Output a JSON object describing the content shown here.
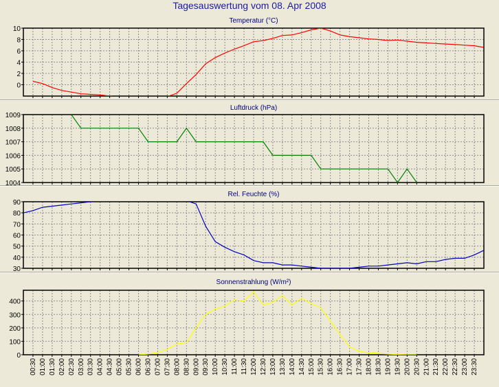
{
  "window": {
    "title": "Tagesauswertung vom 08. Apr 2008"
  },
  "time_labels": [
    "00:30",
    "01:00",
    "01:30",
    "02:00",
    "02:30",
    "03:00",
    "03:30",
    "04:00",
    "04:30",
    "05:00",
    "05:30",
    "06:00",
    "06:30",
    "07:00",
    "07:30",
    "08:00",
    "08:30",
    "09:00",
    "09:30",
    "10:00",
    "10:30",
    "11:00",
    "11:30",
    "12:00",
    "12:30",
    "13:00",
    "13:30",
    "14:00",
    "14:30",
    "15:00",
    "15:30",
    "16:00",
    "16:30",
    "17:00",
    "17:30",
    "18:00",
    "18:30",
    "19:00",
    "19:30",
    "20:00",
    "20:30",
    "21:00",
    "21:30",
    "22:00",
    "22:30",
    "23:00",
    "23:30"
  ],
  "chart_data": [
    {
      "type": "line",
      "title": "Temperatur (°C)",
      "color": "#ff0000",
      "ylim": [
        -2,
        10
      ],
      "yticks": [
        0,
        2,
        4,
        6,
        8,
        10
      ],
      "grid": true,
      "x": [
        "00:30",
        "01:00",
        "01:30",
        "02:00",
        "02:30",
        "03:00",
        "03:30",
        "04:00",
        "04:30",
        "05:00",
        "07:30",
        "08:00",
        "08:30",
        "09:00",
        "09:30",
        "10:00",
        "10:30",
        "11:00",
        "11:30",
        "12:00",
        "12:30",
        "13:00",
        "13:30",
        "14:00",
        "14:30",
        "15:00",
        "15:30",
        "16:00",
        "16:30",
        "17:00",
        "17:30",
        "18:00",
        "18:30",
        "19:00",
        "19:30",
        "20:00",
        "20:30",
        "21:00",
        "21:30",
        "22:00",
        "22:30",
        "23:00",
        "23:30",
        "23:59"
      ],
      "values": [
        0.6,
        0.2,
        -0.5,
        -1.0,
        -1.3,
        -1.6,
        -1.7,
        -1.8,
        -2.0,
        -2.2,
        -2.1,
        -1.5,
        0.2,
        1.8,
        3.7,
        4.8,
        5.6,
        6.3,
        6.9,
        7.6,
        7.8,
        8.2,
        8.7,
        8.8,
        9.2,
        9.7,
        10.0,
        9.5,
        8.8,
        8.5,
        8.3,
        8.1,
        8.0,
        7.8,
        7.9,
        7.7,
        7.5,
        7.4,
        7.3,
        7.2,
        7.1,
        7.0,
        6.9,
        6.6
      ]
    },
    {
      "type": "line",
      "title": "Luftdruck (hPa)",
      "color": "#008000",
      "ylim": [
        1004,
        1009
      ],
      "yticks": [
        1004,
        1005,
        1006,
        1007,
        1008,
        1009
      ],
      "grid": true,
      "x": [
        "02:30",
        "03:00",
        "03:30",
        "04:00",
        "04:30",
        "05:00",
        "05:30",
        "06:00",
        "06:30",
        "07:00",
        "07:30",
        "08:00",
        "08:30",
        "09:00",
        "09:30",
        "10:00",
        "10:30",
        "11:00",
        "11:30",
        "12:00",
        "12:30",
        "13:00",
        "13:30",
        "14:00",
        "14:30",
        "15:00",
        "15:30",
        "16:00",
        "16:30",
        "17:00",
        "17:30",
        "18:00",
        "18:30",
        "19:00",
        "19:30",
        "20:00",
        "20:30"
      ],
      "values": [
        1009,
        1008,
        1008,
        1008,
        1008,
        1008,
        1008,
        1008,
        1007,
        1007,
        1007,
        1007,
        1008,
        1007,
        1007,
        1007,
        1007,
        1007,
        1007,
        1007,
        1007,
        1006,
        1006,
        1006,
        1006,
        1006,
        1005,
        1005,
        1005,
        1005,
        1005,
        1005,
        1005,
        1005,
        1004,
        1005,
        1004
      ]
    },
    {
      "type": "line",
      "title": "Rel. Feuchte (%)",
      "color": "#0000c0",
      "ylim": [
        30,
        90
      ],
      "yticks": [
        30,
        40,
        50,
        60,
        70,
        80,
        90
      ],
      "grid": true,
      "x": [
        "00:00",
        "00:30",
        "01:00",
        "01:30",
        "02:00",
        "02:30",
        "03:00",
        "03:30",
        "04:00",
        "04:30",
        "05:00",
        "05:30",
        "06:00",
        "08:30",
        "09:00",
        "09:30",
        "10:00",
        "10:30",
        "11:00",
        "11:30",
        "12:00",
        "12:30",
        "13:00",
        "13:30",
        "14:00",
        "14:30",
        "15:00",
        "15:30",
        "16:00",
        "16:30",
        "17:00",
        "17:30",
        "18:00",
        "18:30",
        "19:00",
        "19:30",
        "20:00",
        "20:30",
        "21:00",
        "21:30",
        "22:00",
        "22:30",
        "23:00",
        "23:30",
        "23:59"
      ],
      "values": [
        80,
        82,
        85,
        86,
        87,
        88,
        89,
        90,
        91,
        91,
        91,
        91,
        92,
        91,
        88,
        68,
        54,
        49,
        45,
        42,
        37,
        35,
        35,
        33,
        33,
        32,
        31,
        30,
        30,
        30,
        30,
        31,
        32,
        32,
        33,
        34,
        35,
        34,
        36,
        36,
        38,
        39,
        39,
        42,
        46
      ]
    },
    {
      "type": "line",
      "title": "Sonnenstrahlung (W/m²)",
      "color": "#ffff00",
      "ylim": [
        0,
        480
      ],
      "yticks": [
        0,
        100,
        200,
        300,
        400
      ],
      "grid": true,
      "x": [
        "06:00",
        "06:30",
        "07:00",
        "07:30",
        "08:00",
        "08:30",
        "09:00",
        "09:30",
        "10:00",
        "10:30",
        "11:00",
        "11:30",
        "12:00",
        "12:30",
        "13:00",
        "13:30",
        "14:00",
        "14:30",
        "15:00",
        "15:30",
        "16:00",
        "16:30",
        "17:00",
        "17:30",
        "18:00",
        "18:30",
        "19:00",
        "19:30",
        "20:00",
        "20:30"
      ],
      "values": [
        0,
        5,
        15,
        40,
        80,
        90,
        200,
        300,
        340,
        360,
        410,
        400,
        470,
        370,
        390,
        440,
        370,
        420,
        380,
        350,
        250,
        150,
        60,
        25,
        15,
        10,
        5,
        2,
        0,
        0
      ]
    }
  ]
}
